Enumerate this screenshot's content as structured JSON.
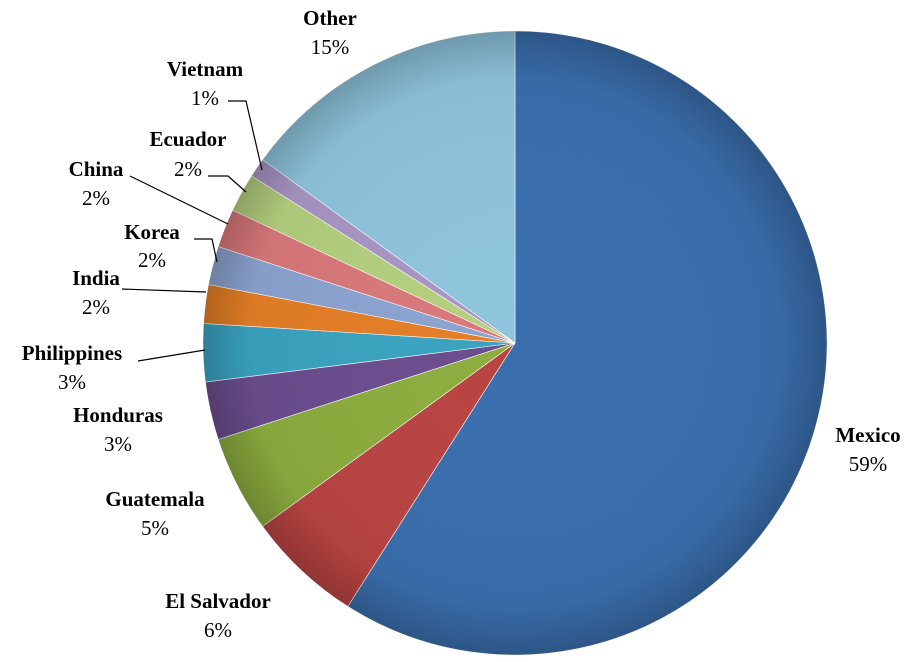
{
  "chart_data": {
    "type": "pie",
    "categories": [
      "Mexico",
      "El Salvador",
      "Guatemala",
      "Honduras",
      "Philippines",
      "India",
      "Korea",
      "China",
      "Ecuador",
      "Vietnam",
      "Other"
    ],
    "values": [
      59,
      6,
      5,
      3,
      3,
      2,
      2,
      2,
      2,
      1,
      15
    ],
    "value_labels": [
      "59%",
      "6%",
      "5%",
      "3%",
      "3%",
      "2%",
      "2%",
      "2%",
      "2%",
      "1%",
      "15%"
    ],
    "colors": [
      "#3a6ead",
      "#b94442",
      "#8cad3e",
      "#6b4d8e",
      "#3aa3c0",
      "#e47e26",
      "#8ba3d0",
      "#d9787a",
      "#b4cf7e",
      "#a895c4",
      "#8ec4dc"
    ]
  }
}
